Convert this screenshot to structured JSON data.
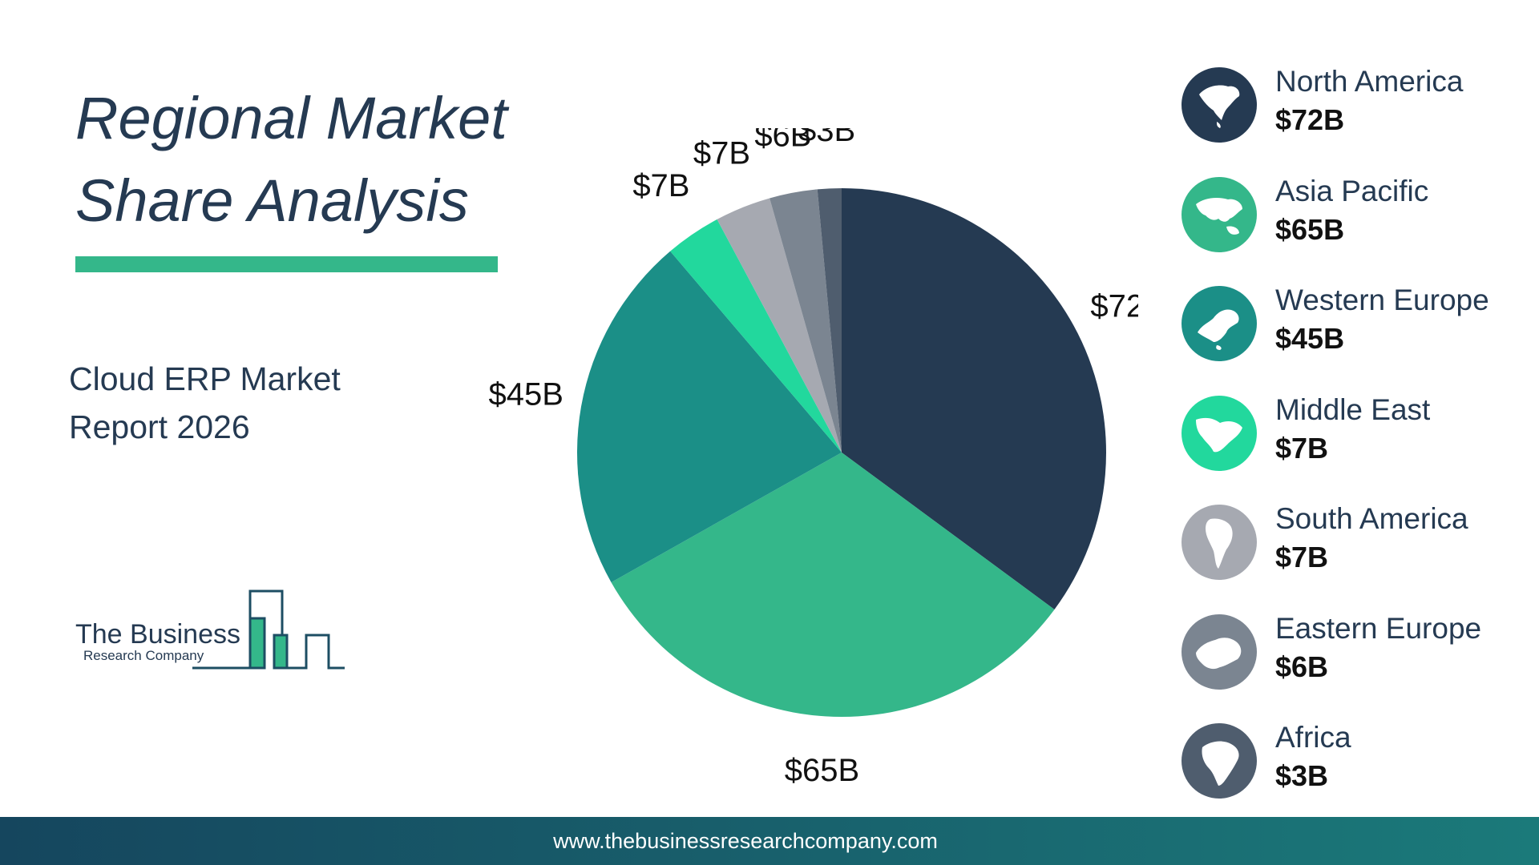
{
  "title": {
    "line1": "Regional Market",
    "line2": "Share Analysis"
  },
  "subtitle": {
    "line1": "Cloud ERP Market",
    "line2": "Report 2026"
  },
  "logo": {
    "name": "The Business",
    "sub": "Research Company"
  },
  "footer": {
    "url": "www.thebusinessresearchcompany.com"
  },
  "colors": {
    "accent": "#34b78a",
    "north_america": "#253a52",
    "asia_pacific": "#34b78a",
    "western_europe": "#1b8f87",
    "middle_east": "#22d89d",
    "south_america": "#a6a9b1",
    "eastern_europe": "#7b8591",
    "africa": "#4f5d6e"
  },
  "chart_data": {
    "type": "pie",
    "unit": "$B",
    "slices": [
      {
        "name": "North America",
        "value": 72,
        "label": "$72B",
        "color": "#253a52",
        "icon": "north-america-map-icon"
      },
      {
        "name": "Asia Pacific",
        "value": 65,
        "label": "$65B",
        "color": "#34b78a",
        "icon": "asia-pacific-map-icon"
      },
      {
        "name": "Western Europe",
        "value": 45,
        "label": "$45B",
        "color": "#1b8f87",
        "icon": "western-europe-map-icon"
      },
      {
        "name": "Middle East",
        "value": 7,
        "label": "$7B",
        "color": "#22d89d",
        "icon": "middle-east-map-icon"
      },
      {
        "name": "South America",
        "value": 7,
        "label": "$7B",
        "color": "#a6a9b1",
        "icon": "south-america-map-icon"
      },
      {
        "name": "Eastern Europe",
        "value": 6,
        "label": "$6B",
        "color": "#7b8591",
        "icon": "eastern-europe-map-icon"
      },
      {
        "name": "Africa",
        "value": 3,
        "label": "$3B",
        "color": "#4f5d6e",
        "icon": "africa-map-icon"
      }
    ],
    "legend_position": "right"
  }
}
